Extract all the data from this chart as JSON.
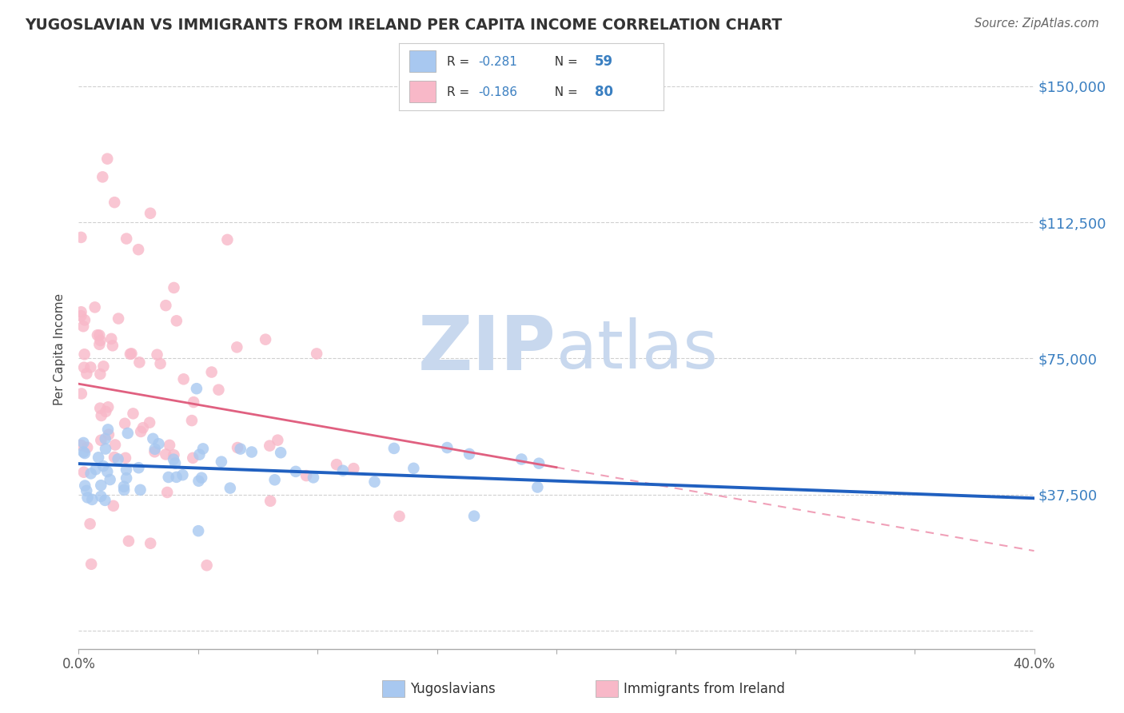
{
  "title": "YUGOSLAVIAN VS IMMIGRANTS FROM IRELAND PER CAPITA INCOME CORRELATION CHART",
  "source": "Source: ZipAtlas.com",
  "ylabel": "Per Capita Income",
  "yticks": [
    0,
    37500,
    75000,
    112500,
    150000
  ],
  "ytick_labels": [
    "",
    "$37,500",
    "$75,000",
    "$112,500",
    "$150,000"
  ],
  "xlim": [
    0.0,
    40.0
  ],
  "ylim": [
    -5000,
    160000
  ],
  "blue_color": "#a8c8f0",
  "pink_color": "#f8b8c8",
  "blue_line_color": "#2060c0",
  "pink_line_color": "#e06080",
  "pink_dash_color": "#f0a0b8",
  "watermark_zip": "ZIP",
  "watermark_atlas": "atlas",
  "watermark_zip_color": "#c8d8ee",
  "watermark_atlas_color": "#c8d8ee",
  "grid_color": "#d0d0d0",
  "background_color": "#ffffff",
  "n_blue": 59,
  "n_pink": 80,
  "blue_seed": 42,
  "pink_seed": 13,
  "legend_r_blue": "R = -0.281",
  "legend_n_blue": "N = 59",
  "legend_r_pink": "R = -0.186",
  "legend_n_pink": "N = 80",
  "legend_labels": [
    "Yugoslavians",
    "Immigrants from Ireland"
  ],
  "blue_trend_x0": 0,
  "blue_trend_y0": 46000,
  "blue_trend_x1": 40,
  "blue_trend_y1": 36500,
  "pink_solid_x0": 0,
  "pink_solid_y0": 68000,
  "pink_solid_x1": 20,
  "pink_solid_y1": 45000,
  "pink_dash_x0": 20,
  "pink_dash_y0": 45000,
  "pink_dash_x1": 40,
  "pink_dash_y1": 22000
}
